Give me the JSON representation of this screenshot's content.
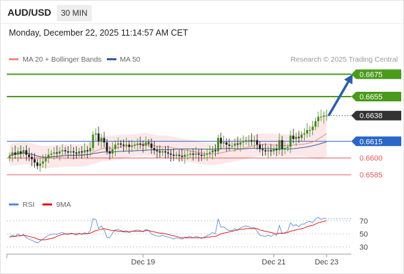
{
  "header": {
    "symbol": "AUD/USD",
    "timeframe": "30 MIN",
    "timestamp": "Monday, December 22, 2025 11:14:57 AM CET"
  },
  "chart_data": {
    "type": "candlestick",
    "source": "Research © 2025 Trading Central",
    "legend": [
      {
        "label": "MA 20 + Bollinger Bands",
        "color": "#f28b82"
      },
      {
        "label": "MA 50",
        "color": "#2f5f98"
      }
    ],
    "price_axis": {
      "min": 0.6571,
      "max": 0.6682
    },
    "levels": [
      {
        "value": 0.6675,
        "label": "0.6675",
        "kind": "resistance",
        "color": "#4a9a1b"
      },
      {
        "value": 0.6655,
        "label": "0.6655",
        "kind": "resistance",
        "color": "#4a9a1b"
      },
      {
        "value": 0.6638,
        "label": "0.6638",
        "kind": "last",
        "color": "#333333"
      },
      {
        "value": 0.6615,
        "label": "0.6615",
        "kind": "pivot",
        "color": "#2a65c7"
      },
      {
        "value": 0.66,
        "label": "0.6600",
        "kind": "support",
        "color": "#e05a5a"
      },
      {
        "value": 0.6585,
        "label": "0.6585",
        "kind": "support",
        "color": "#e05a5a"
      }
    ],
    "forecast_target": 0.6675,
    "candles_close": [
      0.6602,
      0.6605,
      0.6603,
      0.6606,
      0.6604,
      0.6607,
      0.6603,
      0.6601,
      0.6599,
      0.6596,
      0.6593,
      0.6595,
      0.6597,
      0.66,
      0.6603,
      0.6604,
      0.6605,
      0.6604,
      0.6606,
      0.6607,
      0.6606,
      0.6605,
      0.6606,
      0.6605,
      0.6604,
      0.6606,
      0.6605,
      0.6607,
      0.6606,
      0.6609,
      0.6621,
      0.6622,
      0.6615,
      0.6618,
      0.6614,
      0.6606,
      0.6604,
      0.6608,
      0.6612,
      0.6613,
      0.6612,
      0.6611,
      0.6612,
      0.661,
      0.6611,
      0.6612,
      0.6613,
      0.6612,
      0.6611,
      0.6614,
      0.6613,
      0.6609,
      0.6607,
      0.6606,
      0.6605,
      0.6606,
      0.6605,
      0.6604,
      0.6603,
      0.6602,
      0.6603,
      0.6602,
      0.6601,
      0.6603,
      0.6603,
      0.6604,
      0.6603,
      0.6604,
      0.6603,
      0.6602,
      0.6603,
      0.6604,
      0.6605,
      0.6607,
      0.6606,
      0.6618,
      0.6613,
      0.6614,
      0.6612,
      0.6611,
      0.6611,
      0.6613,
      0.6612,
      0.6614,
      0.6615,
      0.6616,
      0.6616,
      0.6615,
      0.6616,
      0.6612,
      0.6608,
      0.6607,
      0.6606,
      0.6607,
      0.6606,
      0.6608,
      0.6607,
      0.6616,
      0.6608,
      0.6609,
      0.661,
      0.662,
      0.6617,
      0.6619,
      0.6618,
      0.6621,
      0.6622,
      0.6625,
      0.6625,
      0.6628,
      0.6633,
      0.6637,
      0.6637,
      0.6638,
      0.6638
    ],
    "x_ticks": [
      {
        "label": "Dec 19",
        "index": 48
      },
      {
        "label": "Dec 21",
        "index": 95
      },
      {
        "label": "Dec 23",
        "index": 114
      }
    ],
    "rsi": {
      "legend": [
        {
          "label": "RSI",
          "color": "#5b8ed8"
        },
        {
          "label": "9MA",
          "color": "#e31b1b"
        }
      ],
      "y_ticks": [
        {
          "label": "70",
          "value": 70
        },
        {
          "label": "50",
          "value": 50
        },
        {
          "label": "30",
          "value": 30
        }
      ],
      "range": [
        20,
        85
      ],
      "rsi_values": [
        45,
        48,
        46,
        50,
        47,
        49,
        44,
        42,
        40,
        38,
        36,
        39,
        42,
        45,
        48,
        49,
        50,
        49,
        51,
        52,
        50,
        49,
        51,
        50,
        48,
        51,
        49,
        52,
        50,
        55,
        73,
        72,
        58,
        62,
        56,
        45,
        44,
        51,
        56,
        57,
        55,
        54,
        55,
        52,
        54,
        55,
        56,
        55,
        53,
        57,
        55,
        50,
        48,
        47,
        46,
        48,
        46,
        45,
        44,
        42,
        44,
        43,
        42,
        45,
        45,
        46,
        44,
        46,
        45,
        43,
        45,
        47,
        49,
        52,
        50,
        73,
        60,
        61,
        57,
        55,
        55,
        58,
        56,
        59,
        61,
        62,
        61,
        59,
        60,
        54,
        48,
        47,
        46,
        48,
        46,
        49,
        48,
        63,
        50,
        52,
        54,
        67,
        62,
        64,
        61,
        65,
        65,
        68,
        69,
        67,
        73,
        75,
        72,
        74,
        73
      ],
      "ma9_values": [
        45,
        46,
        46,
        47,
        47,
        48,
        47,
        46,
        45,
        44,
        42,
        41,
        41,
        41,
        42,
        43,
        44,
        46,
        48,
        49,
        50,
        50,
        50,
        50,
        50,
        50,
        50,
        50,
        50,
        51,
        53,
        55,
        56,
        57,
        58,
        57,
        56,
        55,
        55,
        54,
        54,
        53,
        53,
        53,
        54,
        54,
        54,
        54,
        54,
        55,
        55,
        54,
        53,
        52,
        51,
        51,
        50,
        49,
        48,
        47,
        46,
        45,
        44,
        44,
        44,
        44,
        44,
        44,
        44,
        44,
        44,
        45,
        45,
        46,
        46,
        48,
        50,
        51,
        52,
        53,
        54,
        55,
        56,
        57,
        57,
        58,
        58,
        58,
        58,
        58,
        56,
        55,
        54,
        53,
        52,
        51,
        50,
        51,
        51,
        51,
        52,
        54,
        55,
        56,
        57,
        58,
        59,
        61,
        62,
        63,
        65,
        67,
        68,
        69,
        70
      ]
    }
  }
}
